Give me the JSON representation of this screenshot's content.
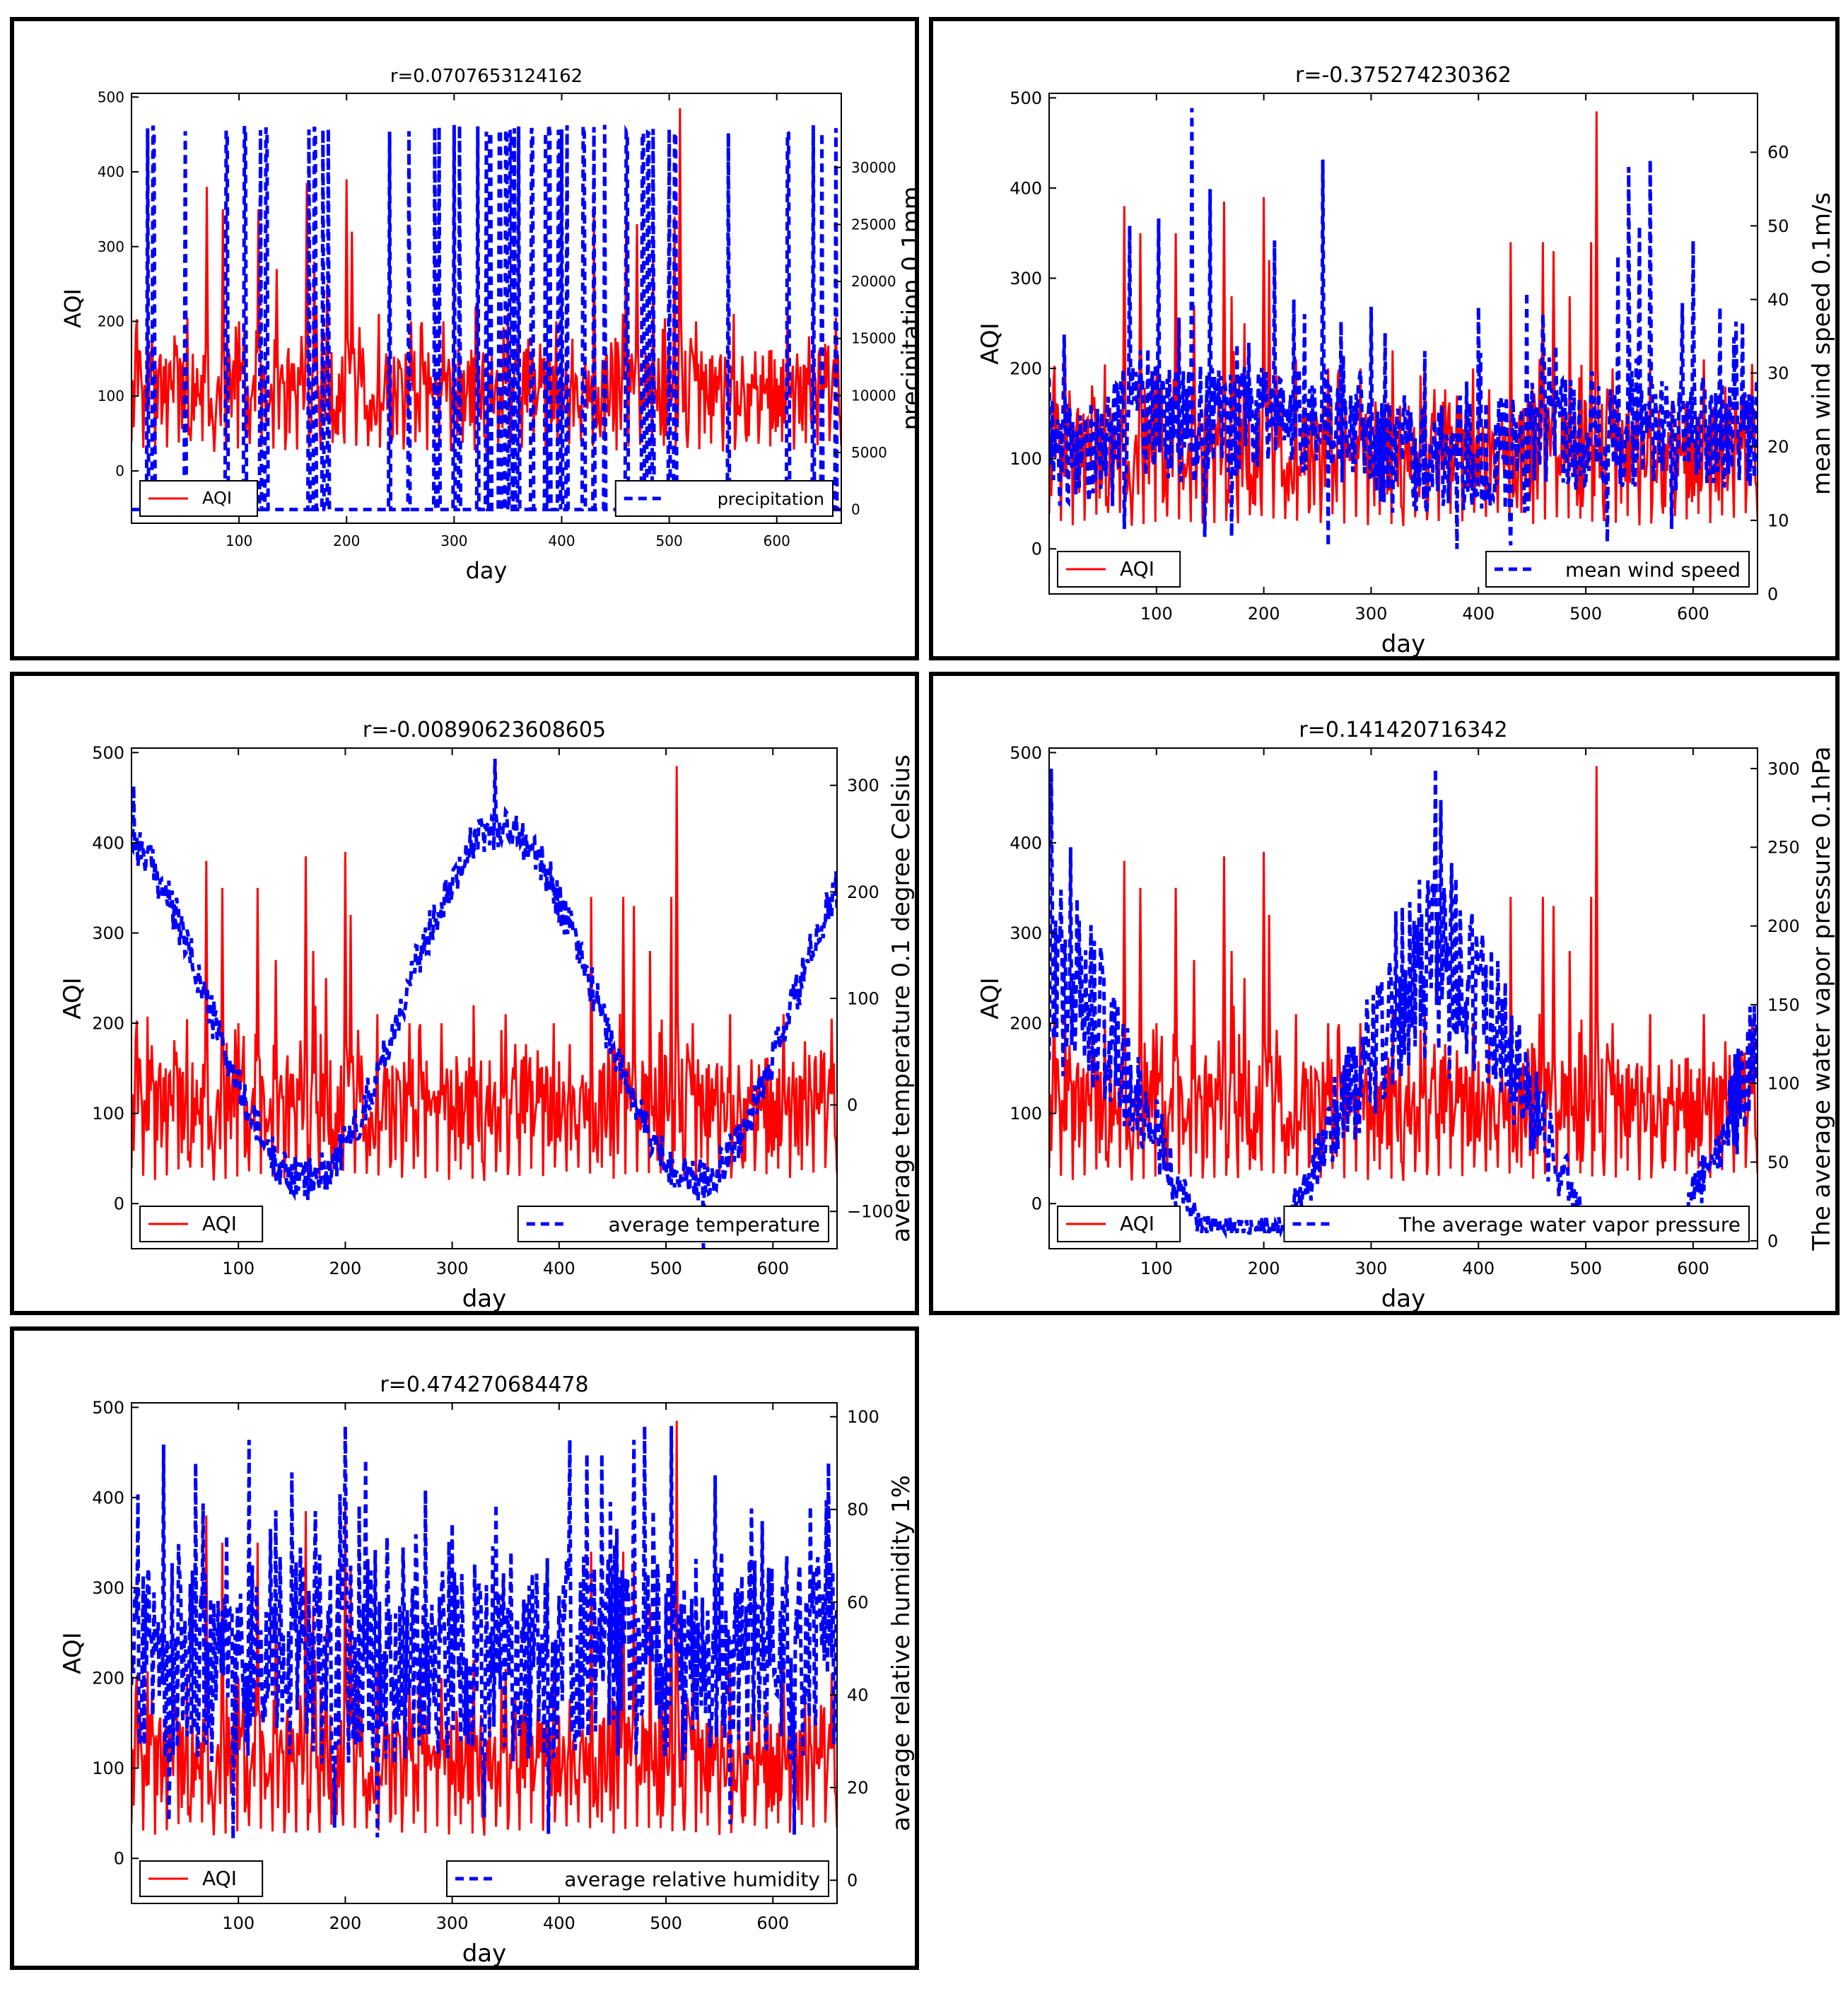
{
  "colors": {
    "aqi": "#ff0000",
    "weather": "#0000ff"
  },
  "chart_data": [
    {
      "type": "line",
      "title": "r=0.0707653124162",
      "xlabel": "day",
      "ylabel": "AQI",
      "ylabel_right": "precipitation 0.1mm",
      "xlim": [
        0,
        660
      ],
      "xticks": [
        100,
        200,
        300,
        400,
        500,
        600
      ],
      "ylim": [
        -70,
        505
      ],
      "yticks": [
        0,
        100,
        200,
        300,
        400,
        500
      ],
      "y2lim": [
        -1200,
        36500
      ],
      "y2ticks": [
        0,
        5000,
        10000,
        15000,
        20000,
        25000,
        30000
      ],
      "series": [
        {
          "name": "AQI",
          "style": "solid",
          "axis": "left",
          "kind": "aqi"
        },
        {
          "name": "precipitation",
          "style": "dashed",
          "axis": "right",
          "kind": "precip"
        }
      ],
      "legend": {
        "left": "AQI",
        "right": "precipitation"
      }
    },
    {
      "type": "line",
      "title": "r=-0.375274230362",
      "xlabel": "day",
      "ylabel": "AQI",
      "ylabel_right": "mean wind speed  0.1m/s",
      "xlim": [
        0,
        660
      ],
      "xticks": [
        100,
        200,
        300,
        400,
        500,
        600
      ],
      "ylim": [
        -50,
        505
      ],
      "yticks": [
        0,
        100,
        200,
        300,
        400,
        500
      ],
      "y2lim": [
        0,
        68
      ],
      "y2ticks": [
        0,
        10,
        20,
        30,
        40,
        50,
        60
      ],
      "series": [
        {
          "name": "AQI",
          "style": "solid",
          "axis": "left",
          "kind": "aqi"
        },
        {
          "name": "mean wind speed",
          "style": "dashed",
          "axis": "right",
          "kind": "wind"
        }
      ],
      "legend": {
        "left": "AQI",
        "right": "mean wind speed"
      }
    },
    {
      "type": "line",
      "title": "r=-0.00890623608605",
      "xlabel": "day",
      "ylabel": "AQI",
      "ylabel_right": "average temperature 0.1 degree Celsius",
      "xlim": [
        0,
        660
      ],
      "xticks": [
        100,
        200,
        300,
        400,
        500,
        600
      ],
      "ylim": [
        -50,
        505
      ],
      "yticks": [
        0,
        100,
        200,
        300,
        400,
        500
      ],
      "y2lim": [
        -135,
        335
      ],
      "y2ticks": [
        -100,
        0,
        100,
        200,
        300
      ],
      "series": [
        {
          "name": "AQI",
          "style": "solid",
          "axis": "left",
          "kind": "aqi"
        },
        {
          "name": "average temperature",
          "style": "dashed",
          "axis": "right",
          "kind": "temp"
        }
      ],
      "legend": {
        "left": "AQI",
        "right": "average temperature"
      }
    },
    {
      "type": "line",
      "title": "r=0.141420716342",
      "xlabel": "day",
      "ylabel": "AQI",
      "ylabel_right": "The average water vapor pressure 0.1hPa",
      "xlim": [
        0,
        660
      ],
      "xticks": [
        100,
        200,
        300,
        400,
        500,
        600
      ],
      "ylim": [
        -50,
        505
      ],
      "yticks": [
        0,
        100,
        200,
        300,
        400,
        500
      ],
      "y2lim": [
        -5,
        313
      ],
      "y2ticks": [
        0,
        50,
        100,
        150,
        200,
        250,
        300
      ],
      "series": [
        {
          "name": "AQI",
          "style": "solid",
          "axis": "left",
          "kind": "aqi"
        },
        {
          "name": "The average water vapor pressure",
          "style": "dashed",
          "axis": "right",
          "kind": "vapor"
        }
      ],
      "legend": {
        "left": "AQI",
        "right": "The average water vapor pressure"
      }
    },
    {
      "type": "line",
      "title": "r=0.474270684478",
      "xlabel": "day",
      "ylabel": "AQI",
      "ylabel_right": "average relative humidity  1%",
      "xlim": [
        0,
        660
      ],
      "xticks": [
        100,
        200,
        300,
        400,
        500,
        600
      ],
      "ylim": [
        -50,
        505
      ],
      "yticks": [
        0,
        100,
        200,
        300,
        400,
        500
      ],
      "y2lim": [
        -5,
        103
      ],
      "y2ticks": [
        0,
        20,
        40,
        60,
        80,
        100
      ],
      "series": [
        {
          "name": "AQI",
          "style": "solid",
          "axis": "left",
          "kind": "aqi"
        },
        {
          "name": "average relative humidity",
          "style": "dashed",
          "axis": "right",
          "kind": "humidity"
        }
      ],
      "legend": {
        "left": "AQI",
        "right": "average relative humidity"
      }
    }
  ]
}
